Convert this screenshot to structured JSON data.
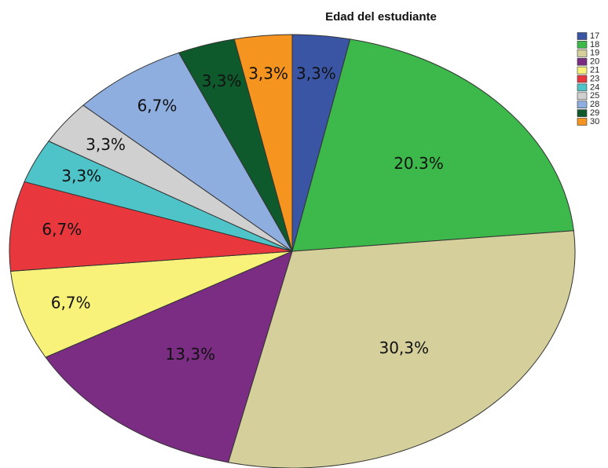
{
  "chart_data": {
    "type": "pie",
    "title": "Edad del estudiante",
    "categories": [
      "17",
      "18",
      "19",
      "20",
      "21",
      "23",
      "24",
      "25",
      "28",
      "29",
      "30"
    ],
    "values": [
      3.3,
      20.3,
      30.3,
      13.3,
      6.7,
      6.7,
      3.3,
      3.3,
      6.7,
      3.3,
      3.3
    ],
    "value_labels": [
      "3,3%",
      "20.3%",
      "30,3%",
      "13,3%",
      "6,7%",
      "6,7%",
      "3,3%",
      "3,3%",
      "6,7%",
      "3,3%",
      "3,3%"
    ],
    "colors": [
      "#3a55a4",
      "#3cb94a",
      "#d4cf9b",
      "#7b2d83",
      "#f8f27a",
      "#e8383d",
      "#4ec3c8",
      "#d0d0d0",
      "#8eaee0",
      "#0f5a2c",
      "#f5941e"
    ],
    "legend": "top-right"
  }
}
